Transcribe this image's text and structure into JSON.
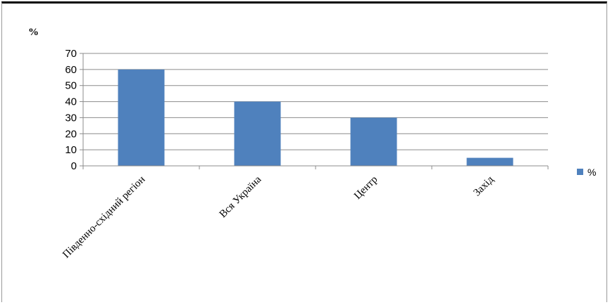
{
  "chart_data": {
    "type": "bar",
    "unit_label": "%",
    "categories": [
      "Південно-східний регіон",
      "Вся Україна",
      "Центр",
      "Захід"
    ],
    "series": [
      {
        "name": "%",
        "values": [
          60,
          40,
          30,
          5
        ],
        "color": "#4f81bd"
      }
    ],
    "ylim": [
      0,
      70
    ],
    "yticks": [
      0,
      10,
      20,
      30,
      40,
      50,
      60,
      70
    ],
    "grid": true,
    "legend": "right"
  }
}
